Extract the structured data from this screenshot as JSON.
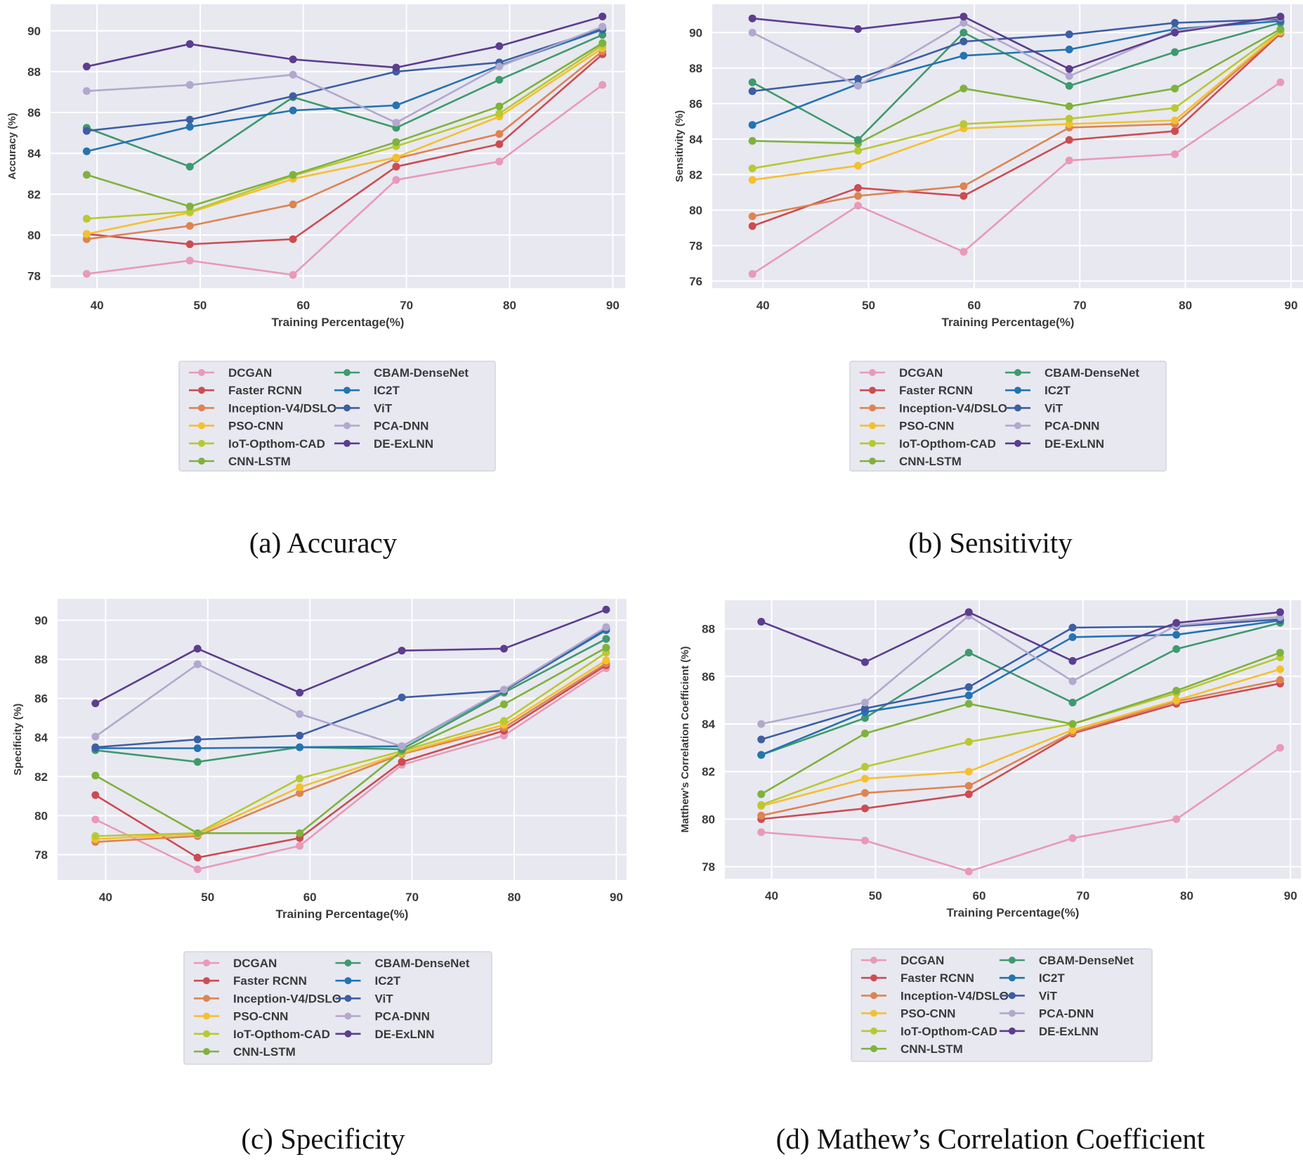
{
  "series_names": [
    "DCGAN",
    "Faster RCNN",
    "Inception-V4/DSLO",
    "PSO-CNN",
    "IoT-Opthom-CAD",
    "CNN-LSTM",
    "CBAM-DenseNet",
    "IC2T",
    "ViT",
    "PCA-DNN",
    "DE-ExLNN"
  ],
  "colors": {
    "DCGAN": "#e89ab8",
    "Faster RCNN": "#cc4c52",
    "Inception-V4/DSLO": "#dd8452",
    "PSO-CNN": "#f4c02f",
    "IoT-Opthom-CAD": "#b9c832",
    "CNN-LSTM": "#7fb23c",
    "CBAM-DenseNet": "#3e9a6c",
    "IC2T": "#2474b0",
    "ViT": "#3c5fa2",
    "PCA-DNN": "#b2a8cc",
    "DE-ExLNN": "#5c3d8e",
    "plot_bg": "#e8e8f1",
    "grid": "#ffffff"
  },
  "chart_data": [
    {
      "type": "line",
      "caption": "(a) Accuracy",
      "xlabel": "Training Percentage(%)",
      "ylabel": "Accuracy (%)",
      "x": [
        39,
        49,
        59,
        69,
        79,
        89
      ],
      "xticks": [
        40,
        50,
        60,
        70,
        80,
        90
      ],
      "yticks": [
        78,
        80,
        82,
        84,
        86,
        88,
        90
      ],
      "xlim": [
        35.5,
        91.2
      ],
      "ylim": [
        77.4,
        91.3
      ],
      "series": [
        {
          "name": "DCGAN",
          "values": [
            78.1,
            78.75,
            78.05,
            82.7,
            83.6,
            87.35
          ]
        },
        {
          "name": "Faster RCNN",
          "values": [
            80.05,
            79.55,
            79.8,
            83.35,
            84.45,
            88.85
          ]
        },
        {
          "name": "Inception-V4/DSLO",
          "values": [
            79.8,
            80.45,
            81.5,
            83.75,
            84.95,
            89.0
          ]
        },
        {
          "name": "PSO-CNN",
          "values": [
            80.05,
            81.1,
            82.75,
            83.8,
            85.8,
            89.15
          ]
        },
        {
          "name": "IoT-Opthom-CAD",
          "values": [
            80.8,
            81.15,
            82.9,
            84.35,
            85.95,
            89.3
          ]
        },
        {
          "name": "CNN-LSTM",
          "values": [
            82.95,
            81.4,
            82.95,
            84.55,
            86.3,
            89.4
          ]
        },
        {
          "name": "CBAM-DenseNet",
          "values": [
            85.25,
            83.35,
            86.75,
            85.25,
            87.6,
            89.8
          ]
        },
        {
          "name": "IC2T",
          "values": [
            84.1,
            85.3,
            86.1,
            86.35,
            88.3,
            90.05
          ]
        },
        {
          "name": "ViT",
          "values": [
            85.1,
            85.65,
            86.8,
            88.0,
            88.45,
            90.1
          ]
        },
        {
          "name": "PCA-DNN",
          "values": [
            87.05,
            87.35,
            87.85,
            85.5,
            88.25,
            90.2
          ]
        },
        {
          "name": "DE-ExLNN",
          "values": [
            88.25,
            89.35,
            88.6,
            88.2,
            89.25,
            90.7
          ]
        }
      ]
    },
    {
      "type": "line",
      "caption": "(b) Sensitivity",
      "xlabel": "Training Percentage(%)",
      "ylabel": "Sensitivity (%)",
      "x": [
        39,
        49,
        59,
        69,
        79,
        89
      ],
      "xticks": [
        40,
        50,
        60,
        70,
        80,
        90
      ],
      "yticks": [
        76,
        78,
        80,
        82,
        84,
        86,
        88,
        90
      ],
      "xlim": [
        35.2,
        91.2
      ],
      "ylim": [
        75.6,
        91.6
      ],
      "series": [
        {
          "name": "DCGAN",
          "values": [
            76.4,
            80.25,
            77.65,
            82.8,
            83.15,
            87.2
          ]
        },
        {
          "name": "Faster RCNN",
          "values": [
            79.1,
            81.25,
            80.8,
            83.95,
            84.45,
            89.95
          ]
        },
        {
          "name": "Inception-V4/DSLO",
          "values": [
            79.65,
            80.8,
            81.35,
            84.65,
            84.85,
            90.0
          ]
        },
        {
          "name": "PSO-CNN",
          "values": [
            81.7,
            82.5,
            84.6,
            84.85,
            85.05,
            90.05
          ]
        },
        {
          "name": "IoT-Opthom-CAD",
          "values": [
            82.35,
            83.35,
            84.85,
            85.15,
            85.75,
            90.1
          ]
        },
        {
          "name": "CNN-LSTM",
          "values": [
            83.9,
            83.75,
            86.85,
            85.85,
            86.85,
            90.2
          ]
        },
        {
          "name": "CBAM-DenseNet",
          "values": [
            87.2,
            83.95,
            90.0,
            87.0,
            88.9,
            90.55
          ]
        },
        {
          "name": "IC2T",
          "values": [
            84.8,
            87.1,
            88.7,
            89.05,
            90.2,
            90.65
          ]
        },
        {
          "name": "ViT",
          "values": [
            86.7,
            87.4,
            89.5,
            89.9,
            90.55,
            90.75
          ]
        },
        {
          "name": "PCA-DNN",
          "values": [
            90.0,
            87.0,
            90.55,
            87.55,
            90.1,
            90.85
          ]
        },
        {
          "name": "DE-ExLNN",
          "values": [
            90.8,
            90.2,
            90.9,
            87.95,
            90.0,
            90.9
          ]
        }
      ]
    },
    {
      "type": "line",
      "caption": "(c) Specificity",
      "xlabel": "Training Percentage(%)",
      "ylabel": "Specificity (%)",
      "x": [
        39,
        49,
        59,
        69,
        79,
        89
      ],
      "xticks": [
        40,
        50,
        60,
        70,
        80,
        90
      ],
      "yticks": [
        78,
        80,
        82,
        84,
        86,
        88,
        90
      ],
      "xlim": [
        35.3,
        91.0
      ],
      "ylim": [
        76.7,
        91.1
      ],
      "series": [
        {
          "name": "DCGAN",
          "values": [
            79.8,
            77.25,
            78.45,
            82.6,
            84.1,
            87.55
          ]
        },
        {
          "name": "Faster RCNN",
          "values": [
            81.05,
            77.85,
            78.85,
            82.75,
            84.35,
            87.7
          ]
        },
        {
          "name": "Inception-V4/DSLO",
          "values": [
            78.65,
            78.95,
            81.15,
            83.15,
            84.5,
            87.8
          ]
        },
        {
          "name": "PSO-CNN",
          "values": [
            78.8,
            79.05,
            81.45,
            83.2,
            84.65,
            87.95
          ]
        },
        {
          "name": "IoT-Opthom-CAD",
          "values": [
            78.95,
            79.1,
            81.9,
            83.3,
            84.85,
            88.35
          ]
        },
        {
          "name": "CNN-LSTM",
          "values": [
            82.05,
            79.1,
            79.1,
            83.3,
            85.7,
            88.6
          ]
        },
        {
          "name": "CBAM-DenseNet",
          "values": [
            83.35,
            82.75,
            83.5,
            83.4,
            86.3,
            89.05
          ]
        },
        {
          "name": "IC2T",
          "values": [
            83.45,
            83.45,
            83.5,
            83.55,
            86.4,
            89.5
          ]
        },
        {
          "name": "ViT",
          "values": [
            83.5,
            83.9,
            84.1,
            86.05,
            86.4,
            89.6
          ]
        },
        {
          "name": "PCA-DNN",
          "values": [
            84.05,
            87.75,
            85.2,
            83.55,
            86.45,
            89.65
          ]
        },
        {
          "name": "DE-ExLNN",
          "values": [
            85.75,
            88.55,
            86.3,
            88.45,
            88.55,
            90.55
          ]
        }
      ]
    },
    {
      "type": "line",
      "caption": "(d) Mathew’s Correlation Coefficient",
      "xlabel": "Training Percentage(%)",
      "ylabel": "Matthew’s Correlation Coefficient (%)",
      "x": [
        39,
        49,
        59,
        69,
        79,
        89
      ],
      "xticks": [
        40,
        50,
        60,
        70,
        80,
        90
      ],
      "yticks": [
        78,
        80,
        82,
        84,
        86,
        88
      ],
      "xlim": [
        35.5,
        91.0
      ],
      "ylim": [
        77.5,
        89.2
      ],
      "series": [
        {
          "name": "DCGAN",
          "values": [
            79.45,
            79.1,
            77.8,
            79.2,
            80.0,
            83.0
          ]
        },
        {
          "name": "Faster RCNN",
          "values": [
            80.0,
            80.45,
            81.05,
            83.6,
            84.85,
            85.7
          ]
        },
        {
          "name": "Inception-V4/DSLO",
          "values": [
            80.15,
            81.1,
            81.4,
            83.65,
            84.95,
            85.85
          ]
        },
        {
          "name": "PSO-CNN",
          "values": [
            80.55,
            81.7,
            82.0,
            83.75,
            85.0,
            86.3
          ]
        },
        {
          "name": "IoT-Opthom-CAD",
          "values": [
            80.6,
            82.2,
            83.25,
            84.0,
            85.3,
            86.8
          ]
        },
        {
          "name": "CNN-LSTM",
          "values": [
            81.05,
            83.6,
            84.85,
            84.0,
            85.4,
            87.0
          ]
        },
        {
          "name": "CBAM-DenseNet",
          "values": [
            82.7,
            84.25,
            87.0,
            84.9,
            87.15,
            88.25
          ]
        },
        {
          "name": "IC2T",
          "values": [
            82.7,
            84.5,
            85.2,
            87.65,
            87.75,
            88.35
          ]
        },
        {
          "name": "ViT",
          "values": [
            83.35,
            84.65,
            85.55,
            88.05,
            88.1,
            88.4
          ]
        },
        {
          "name": "PCA-DNN",
          "values": [
            84.0,
            84.9,
            88.55,
            85.8,
            88.15,
            88.5
          ]
        },
        {
          "name": "DE-ExLNN",
          "values": [
            88.3,
            86.6,
            88.7,
            86.65,
            88.25,
            88.7
          ]
        }
      ]
    }
  ]
}
